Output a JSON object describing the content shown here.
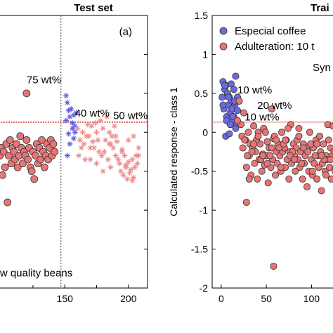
{
  "chart_data": [
    {
      "type": "scatter",
      "panel": "left",
      "title": "Test set",
      "panel_label": "(a)",
      "xlim": [
        98,
        215
      ],
      "ylim": [
        -2,
        1.5
      ],
      "x_ticks": [
        {
          "value": 150,
          "label": "150"
        },
        {
          "value": 200,
          "label": "200"
        }
      ],
      "vertical_divider_x": 147,
      "threshold_y": 0.13,
      "annotations": [
        {
          "text": "75 wt%",
          "x": 120,
          "y": 0.63
        },
        {
          "text": "40 wt%",
          "x": 158,
          "y": 0.2
        },
        {
          "text": "50 wt%",
          "x": 188,
          "y": 0.17
        },
        {
          "text": "w quality beans",
          "x": 99,
          "y": -1.85
        }
      ],
      "colors": {
        "blue": "#5a5adc",
        "pink": "#f08a8a",
        "marker_red": "#e87575",
        "threshold": "#d62020"
      },
      "series": [
        {
          "marker": "circle",
          "x": [
            99,
            100,
            101,
            102,
            103,
            104,
            105,
            106,
            107,
            108,
            109,
            110,
            111,
            112,
            113,
            114,
            115,
            116,
            117,
            118,
            119,
            120,
            121,
            122,
            123,
            124,
            125,
            126,
            127,
            128,
            129,
            130,
            131,
            132,
            133,
            134,
            135,
            136,
            137,
            138,
            139,
            140,
            141,
            142,
            120
          ],
          "y": [
            -0.3,
            -0.2,
            -0.55,
            -0.25,
            -0.45,
            -0.15,
            -0.9,
            -0.3,
            -0.1,
            -0.4,
            -0.2,
            -0.25,
            -0.35,
            -0.15,
            -0.45,
            -0.3,
            -0.05,
            -0.2,
            -0.4,
            -0.25,
            -0.3,
            -0.1,
            -0.35,
            -0.2,
            -0.45,
            -0.5,
            -0.25,
            -0.6,
            -0.3,
            -0.15,
            -0.4,
            -0.2,
            -0.35,
            -0.1,
            -0.25,
            -0.45,
            -0.3,
            -0.15,
            -0.35,
            -0.2,
            -0.1,
            -0.3,
            -0.15,
            -0.25,
            0.5
          ]
        },
        {
          "marker": "asterisk-blue",
          "x": [
            151,
            152,
            153,
            154,
            155,
            156,
            157,
            158,
            159,
            151,
            153,
            156,
            157,
            152,
            154,
            158
          ],
          "y": [
            0.47,
            0.38,
            0.28,
            0.2,
            0.3,
            0.12,
            0.22,
            0.08,
            0.25,
            0.15,
            -0.02,
            0.05,
            -0.08,
            -0.3,
            -0.15,
            0.0
          ]
        },
        {
          "marker": "asterisk-pink",
          "x": [
            160,
            162,
            164,
            165,
            167,
            168,
            170,
            171,
            172,
            174,
            175,
            177,
            178,
            179,
            180,
            182,
            183,
            184,
            185,
            186,
            187,
            188,
            189,
            190,
            191,
            193,
            194,
            195,
            196,
            197,
            198,
            199,
            200,
            201,
            202,
            203,
            204,
            205,
            206,
            207,
            208,
            161,
            163,
            166,
            169,
            173,
            176,
            181,
            185,
            190,
            195,
            200,
            204,
            208,
            170,
            175,
            180,
            186,
            192,
            198,
            203
          ],
          "y": [
            0.05,
            -0.1,
            0.0,
            -0.15,
            -0.05,
            0.1,
            -0.2,
            0.08,
            -0.12,
            0.12,
            0.0,
            -0.25,
            0.15,
            -0.3,
            0.05,
            -0.1,
            0.2,
            -0.35,
            0.0,
            -0.15,
            -0.05,
            -0.2,
            0.08,
            -0.3,
            -0.12,
            -0.4,
            -0.5,
            -0.25,
            -0.55,
            -0.3,
            -0.45,
            -0.6,
            -0.38,
            -0.52,
            -0.48,
            -0.35,
            -0.58,
            -0.45,
            -0.3,
            -0.4,
            -0.2,
            -0.3,
            -0.2,
            -0.35,
            -0.05,
            -0.2,
            -0.1,
            -0.25,
            -0.15,
            -0.05,
            -0.22,
            -0.1,
            -0.05,
            -0.3,
            -0.35,
            -0.4,
            -0.5,
            -0.45,
            -0.35,
            -0.42,
            -0.62
          ]
        }
      ]
    },
    {
      "type": "scatter",
      "panel": "right",
      "title": "Trai",
      "xlim": [
        -10,
        130
      ],
      "ylim": [
        -2,
        1.5
      ],
      "ylabel": "Calculated response - class 1",
      "x_ticks": [
        {
          "value": 0,
          "label": "0"
        },
        {
          "value": 50,
          "label": "50"
        },
        {
          "value": 100,
          "label": "100"
        }
      ],
      "y_ticks": [
        {
          "value": 1.5,
          "label": "1.5"
        },
        {
          "value": 1,
          "label": "1"
        },
        {
          "value": 0.5,
          "label": "0.5"
        },
        {
          "value": 0,
          "label": "0"
        },
        {
          "value": -0.5,
          "label": "-0.5"
        },
        {
          "value": -1,
          "label": "-1"
        },
        {
          "value": -1.5,
          "label": "-1.5"
        },
        {
          "value": -2,
          "label": "-2"
        }
      ],
      "threshold_y": 0.13,
      "legend": {
        "placement": "top-left",
        "entries": [
          {
            "label": "Especial coffee",
            "color": "#6b6bdf"
          },
          {
            "label": "Adulteration: 10 t",
            "color": "#e87575"
          }
        ],
        "extra_text": "Syn"
      },
      "annotations": [
        {
          "text": "10 wt%",
          "x": 18,
          "y": 0.5
        },
        {
          "text": "20 wt%",
          "x": 40,
          "y": 0.3
        },
        {
          "text": "10 wt%",
          "x": 26,
          "y": 0.15
        }
      ],
      "series": [
        {
          "name": "Especial coffee",
          "color": "#6b6bdf",
          "x": [
            1,
            2,
            3,
            4,
            5,
            6,
            7,
            8,
            9,
            10,
            11,
            12,
            13,
            14,
            15,
            16,
            17,
            18,
            2,
            4,
            6,
            8,
            10,
            12,
            14,
            16,
            18,
            5,
            9,
            13,
            15
          ],
          "y": [
            0.45,
            0.65,
            0.3,
            0.55,
            0.6,
            0.2,
            0.5,
            0.35,
            0.45,
            0.25,
            0.62,
            0.4,
            0.15,
            0.55,
            0.35,
            0.72,
            0.1,
            0.45,
            0.35,
            0.6,
            0.15,
            0.45,
            0.1,
            0.3,
            0.2,
            0.05,
            0.28,
            -0.05,
            -0.02,
            0.2,
            0.4
          ]
        },
        {
          "name": "Adulteration: 10 t",
          "color": "#e87575",
          "x": [
            20,
            22,
            24,
            25,
            27,
            28,
            30,
            31,
            32,
            33,
            35,
            36,
            37,
            38,
            40,
            41,
            42,
            43,
            45,
            46,
            47,
            48,
            50,
            51,
            52,
            53,
            55,
            56,
            57,
            58,
            60,
            61,
            62,
            63,
            65,
            66,
            67,
            68,
            70,
            71,
            72,
            73,
            75,
            76,
            77,
            78,
            80,
            81,
            82,
            83,
            85,
            86,
            87,
            88,
            90,
            91,
            92,
            93,
            95,
            96,
            97,
            98,
            100,
            101,
            102,
            103,
            105,
            106,
            107,
            108,
            110,
            111,
            112,
            113,
            115,
            116,
            117,
            118,
            120,
            121,
            122,
            123,
            125,
            126,
            18,
            23,
            29,
            34,
            39,
            44,
            49,
            54,
            59,
            64,
            69,
            74,
            79,
            84,
            89,
            94,
            99,
            104,
            109,
            114,
            119,
            124,
            26,
            31,
            36,
            41,
            46,
            51,
            56,
            61,
            66,
            71,
            76,
            81,
            86,
            91,
            96,
            101,
            106,
            111,
            116,
            121,
            28,
            58
          ],
          "y": [
            0.4,
            0.1,
            -0.2,
            0.25,
            -0.1,
            -0.45,
            0.0,
            -0.3,
            -0.15,
            -0.55,
            -0.2,
            0.08,
            -0.4,
            -0.25,
            -0.6,
            0.0,
            -0.35,
            -0.15,
            -0.5,
            -0.28,
            0.05,
            -0.42,
            -0.3,
            -0.12,
            -0.65,
            -0.2,
            -0.45,
            0.3,
            -0.35,
            -0.08,
            -0.55,
            -0.25,
            -0.4,
            -0.15,
            -0.3,
            -0.5,
            0.0,
            -0.25,
            -0.2,
            -0.45,
            -0.1,
            -0.35,
            -0.6,
            -0.25,
            0.1,
            -0.4,
            -0.15,
            -0.3,
            -0.5,
            -0.2,
            -0.35,
            0.05,
            -0.45,
            -0.25,
            -0.6,
            -0.15,
            -0.4,
            -0.3,
            -0.7,
            -0.2,
            -0.5,
            0.0,
            -0.35,
            -0.55,
            -0.2,
            -0.4,
            -0.1,
            -0.6,
            -0.3,
            -0.45,
            -0.25,
            -0.75,
            -0.4,
            -0.15,
            -0.5,
            -0.3,
            -0.35,
            0.1,
            -0.45,
            -0.2,
            -0.6,
            -0.3,
            -0.25,
            -0.5,
            0.15,
            -0.05,
            -0.3,
            -0.25,
            -0.1,
            -0.35,
            0.0,
            -0.3,
            -0.05,
            -0.2,
            -0.15,
            0.05,
            -0.25,
            -0.1,
            -0.4,
            -0.2,
            -0.15,
            -0.3,
            -0.05,
            -0.35,
            -0.1,
            0.08,
            -0.1,
            -0.6,
            -0.15,
            -0.05,
            -0.3,
            -0.4,
            -0.2,
            -0.1,
            -0.45,
            -0.1,
            -0.3,
            -0.35,
            -0.05,
            -0.2,
            -0.25,
            -0.5,
            -0.15,
            -0.3,
            -0.55,
            -0.35,
            -0.9,
            -1.72
          ]
        }
      ]
    }
  ]
}
